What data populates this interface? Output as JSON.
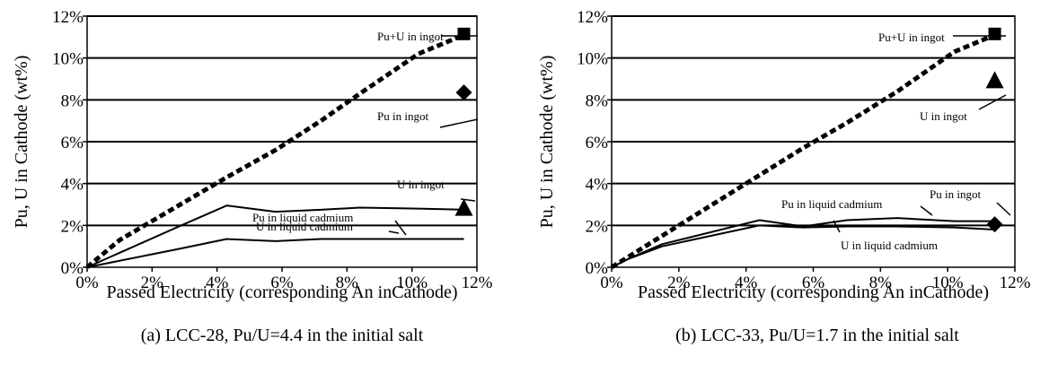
{
  "chart_data": [
    {
      "type": "line",
      "caption": "(a) LCC-28, Pu/U=4.4 in the initial salt",
      "xlabel": "Passed Electricity (corresponding An inCathode)",
      "ylabel": "Pu, U in Cathode (wt%)",
      "xlim": [
        0,
        12
      ],
      "ylim": [
        0,
        12
      ],
      "x_ticks": [
        "0%",
        "2%",
        "4%",
        "6%",
        "8%",
        "10%",
        "12%"
      ],
      "y_ticks": [
        "0%",
        "2%",
        "4%",
        "6%",
        "8%",
        "10%",
        "12%"
      ],
      "grid": "horizontal",
      "series": [
        {
          "name": "Pu+U in ingot",
          "style": "dashed",
          "x": [
            0,
            1,
            4.3,
            5.8,
            7.2,
            8.4,
            10.2,
            11.6
          ],
          "y": [
            0,
            1.3,
            4.3,
            5.6,
            7.0,
            8.3,
            10.2,
            11.1
          ]
        },
        {
          "name": "Pu in liquid cadmium",
          "style": "solid",
          "x": [
            0,
            2.9,
            4.3,
            5.8,
            7.2,
            8.4,
            10.2,
            11.6
          ],
          "y": [
            0,
            2.0,
            2.95,
            2.65,
            2.75,
            2.85,
            2.8,
            2.75
          ]
        },
        {
          "name": "U in liquid cadmium",
          "style": "solid",
          "x": [
            0,
            2.9,
            4.3,
            5.8,
            7.2,
            8.4,
            10.2,
            11.6
          ],
          "y": [
            0,
            0.9,
            1.35,
            1.25,
            1.35,
            1.35,
            1.35,
            1.35
          ]
        }
      ],
      "markers": [
        {
          "name": "Pu+U in ingot",
          "shape": "square",
          "x": 11.6,
          "y": 11.15
        },
        {
          "name": "Pu in ingot",
          "shape": "diamond",
          "x": 11.6,
          "y": 8.35
        },
        {
          "name": "U in ingot",
          "shape": "triangle",
          "x": 11.6,
          "y": 2.8
        }
      ]
    },
    {
      "type": "line",
      "caption": "(b) LCC-33, Pu/U=1.7 in the initial salt",
      "xlabel": "Passed Electricity (corresponding An inCathode)",
      "ylabel": "Pu, U in Cathode (wt%)",
      "xlim": [
        0,
        12
      ],
      "ylim": [
        0,
        12
      ],
      "x_ticks": [
        "0%",
        "2%",
        "4%",
        "6%",
        "8%",
        "10%",
        "12%"
      ],
      "y_ticks": [
        "0%",
        "2%",
        "4%",
        "6%",
        "8%",
        "10%",
        "12%"
      ],
      "grid": "horizontal",
      "series": [
        {
          "name": "Pu+U in ingot",
          "style": "dashed",
          "x": [
            0,
            0.5,
            1.5,
            4.4,
            5.7,
            7.0,
            8.5,
            10.2,
            11.4
          ],
          "y": [
            0,
            0.5,
            1.5,
            4.4,
            5.7,
            6.9,
            8.4,
            10.3,
            11.1
          ]
        },
        {
          "name": "Pu in liquid cadmium",
          "style": "solid",
          "x": [
            0,
            0.5,
            1.5,
            4.4,
            5.7,
            7.0,
            8.5,
            10.2,
            11.4
          ],
          "y": [
            0,
            0.4,
            1.1,
            2.25,
            1.95,
            2.25,
            2.35,
            2.2,
            2.2
          ]
        },
        {
          "name": "U in liquid cadmium",
          "style": "solid",
          "x": [
            0,
            0.5,
            1.5,
            4.4,
            5.7,
            7.0,
            8.5,
            10.2,
            11.4
          ],
          "y": [
            0,
            0.4,
            1.0,
            2.0,
            1.9,
            1.95,
            1.95,
            1.9,
            1.8
          ]
        }
      ],
      "markers": [
        {
          "name": "Pu+U in ingot",
          "shape": "square",
          "x": 11.4,
          "y": 11.15
        },
        {
          "name": "U in ingot",
          "shape": "triangle",
          "x": 11.4,
          "y": 8.9
        },
        {
          "name": "Pu in ingot",
          "shape": "diamond",
          "x": 11.4,
          "y": 2.05
        }
      ]
    }
  ]
}
